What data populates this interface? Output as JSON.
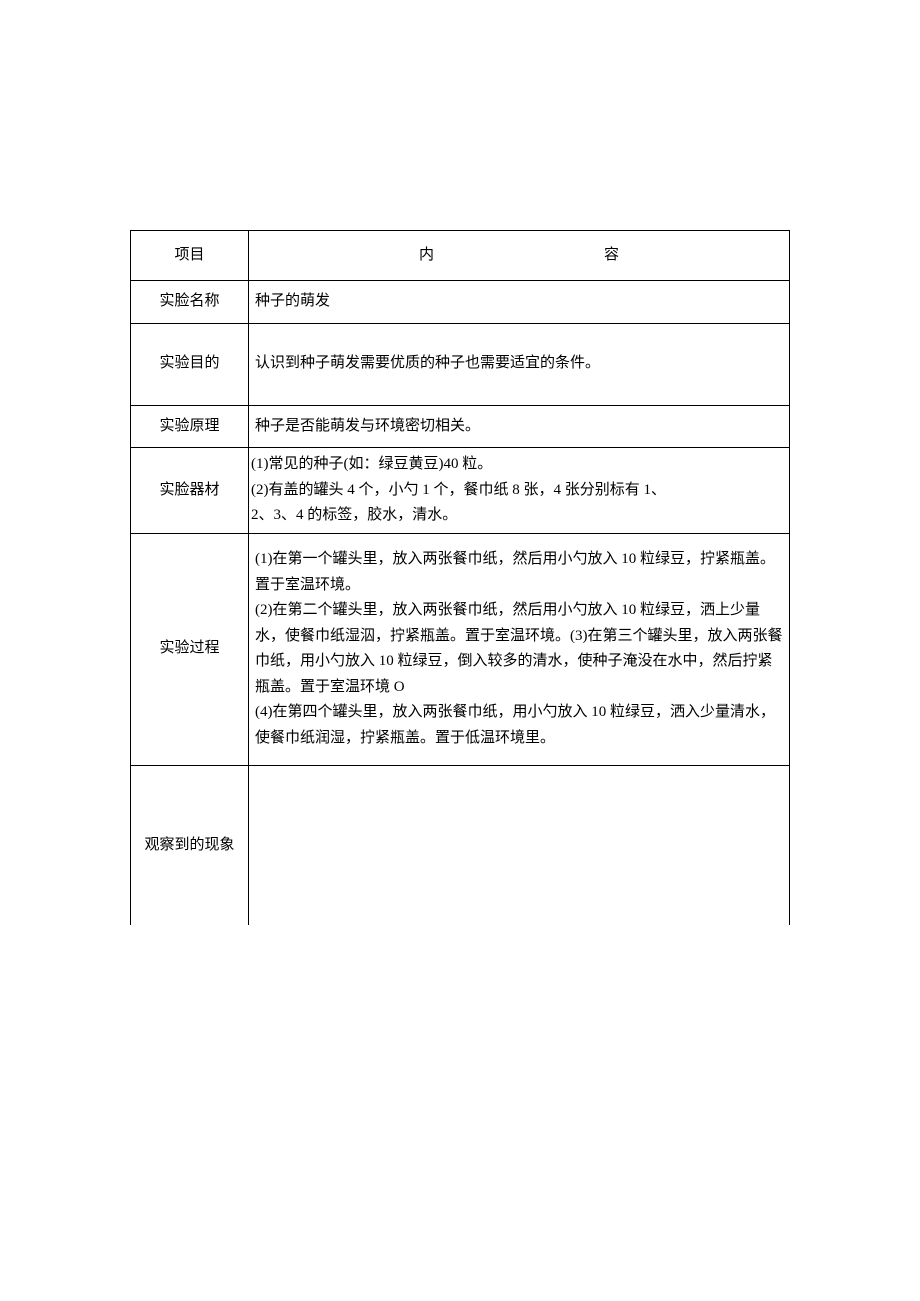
{
  "table": {
    "header": {
      "label": "项目",
      "content_char1": "内",
      "content_char2": "容"
    },
    "rows": {
      "name": {
        "label": "实脸名称",
        "content": "种子的萌发"
      },
      "purpose": {
        "label": "实验目的",
        "content": "认识到种子萌发需要优质的种子也需要适宜的条件。"
      },
      "principle": {
        "label": "实验原理",
        "content": "种子是否能萌发与环境密切相关。"
      },
      "materials": {
        "label": "实脸器材",
        "line1": "(1)常见的种子(如：绿豆黄豆)40 粒。",
        "line2": "(2)有盖的罐头 4 个，小勺 1 个，餐巾纸 8 张，4 张分别标有 1、",
        "line3": "2、3、4 的标签，胶水，清水。"
      },
      "process": {
        "label": "实验过程",
        "line1": "(1)在第一个罐头里，放入两张餐巾纸，然后用小勺放入 10 粒绿豆，拧紧瓶盖。置于室温环境。",
        "line2": "(2)在第二个罐头里，放入两张餐巾纸，然后用小勺放入 10 粒绿豆，洒上少量水，使餐巾纸湿泅，拧紧瓶盖。置于室温环境。(3)在第三个罐头里，放入两张餐巾纸，用小勺放入 10 粒绿豆，倒入较多的清水，使种子淹没在水中，然后拧紧瓶盖。置于室温环境 O",
        "line3": "(4)在第四个罐头里，放入两张餐巾纸，用小勺放入 10 粒绿豆，洒入少量清水，使餐巾纸润湿，拧紧瓶盖。置于低温环境里。"
      },
      "observation": {
        "label": "观察到的现象",
        "content": ""
      }
    }
  },
  "style": {
    "background_color": "#ffffff",
    "text_color": "#000000",
    "border_color": "#000000",
    "font_family": "SimSun",
    "font_size": 15
  }
}
